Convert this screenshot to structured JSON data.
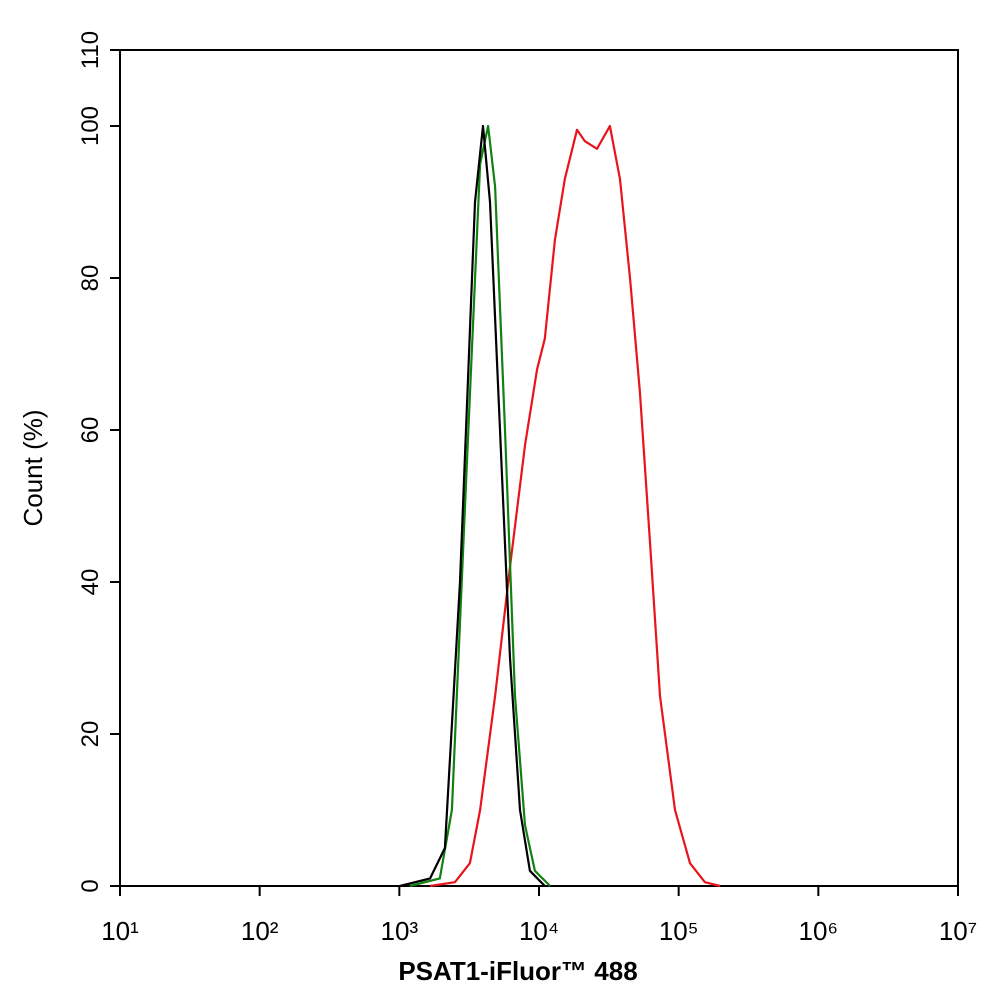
{
  "chart_data": {
    "type": "line",
    "x_label": "PSAT1-iFluor™ 488",
    "y_label": "Count  (%)",
    "xscale": "log",
    "xlim": [
      10,
      10000000
    ],
    "xticks": [
      {
        "value": 10,
        "label": "10¹"
      },
      {
        "value": 100,
        "label": "10²"
      },
      {
        "value": 1000,
        "label": "10³"
      },
      {
        "value": 10000,
        "label": "10⁴"
      },
      {
        "value": 100000,
        "label": "10⁵"
      },
      {
        "value": 1000000,
        "label": "10⁶"
      },
      {
        "value": 10000000,
        "label": "10⁷"
      }
    ],
    "ylim": [
      0,
      110
    ],
    "yticks": [
      0,
      20,
      40,
      60,
      80,
      100,
      110
    ],
    "series": [
      {
        "color": "#e8141b",
        "x": [
          1660,
          2500,
          3200,
          3790,
          4850,
          6200,
          7940,
          9690,
          11000,
          13000,
          15300,
          18700,
          21300,
          26000,
          32200,
          38000,
          44800,
          52800,
          62400,
          73500,
          94200,
          120600,
          154000,
          198000
        ],
        "values": [
          0,
          0.5,
          3,
          10,
          25,
          42,
          58,
          68,
          72,
          85,
          93,
          99.5,
          98,
          97,
          100,
          93,
          80,
          65,
          45,
          25,
          10,
          3,
          0.5,
          0
        ]
      },
      {
        "color": "#118211",
        "x": [
          1190,
          1950,
          2380,
          2950,
          3790,
          4320,
          4850,
          5710,
          6730,
          7940,
          9350,
          12000
        ],
        "values": [
          0,
          1,
          10,
          50,
          95,
          100,
          92,
          60,
          25,
          8,
          2,
          0
        ]
      },
      {
        "color": "#000000",
        "x": [
          1010,
          1660,
          2120,
          2720,
          3480,
          3970,
          4460,
          5260,
          6200,
          7310,
          8610,
          11000
        ],
        "values": [
          0,
          1,
          5,
          40,
          90,
          100,
          90,
          60,
          30,
          10,
          2,
          0
        ]
      }
    ]
  }
}
